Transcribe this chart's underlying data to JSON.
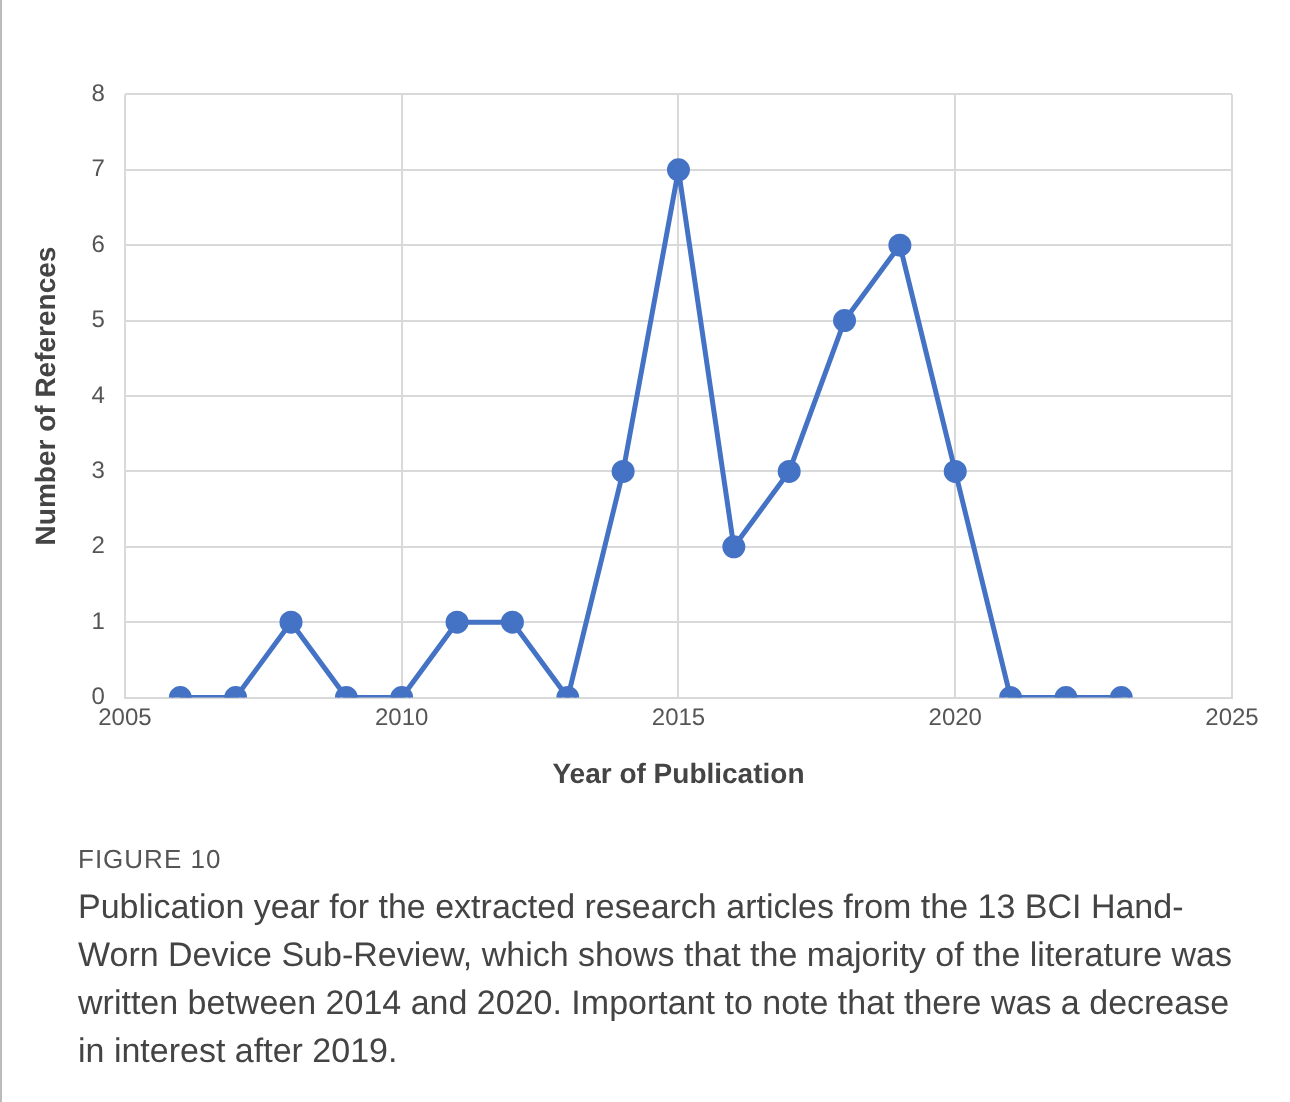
{
  "chart_data": {
    "type": "line",
    "xlabel": "Year of Publication",
    "ylabel": "Number of References",
    "x": [
      2006,
      2007,
      2008,
      2009,
      2010,
      2011,
      2012,
      2013,
      2014,
      2015,
      2016,
      2017,
      2018,
      2019,
      2020,
      2021,
      2022,
      2023
    ],
    "series": [
      {
        "color": "#4472c4",
        "values": [
          0,
          0,
          1,
          0,
          0,
          1,
          1,
          0,
          3,
          7,
          2,
          3,
          5,
          6,
          3,
          0,
          0,
          0
        ]
      }
    ],
    "xlim": [
      2005,
      2025
    ],
    "xticks": [
      2005,
      2010,
      2015,
      2020,
      2025
    ],
    "ylim": [
      0,
      8
    ],
    "yticks": [
      0,
      1,
      2,
      3,
      4,
      5,
      6,
      7,
      8
    ],
    "grid": true,
    "legend": false,
    "marker": "circle",
    "line_style": "solid",
    "annotations": [
      "FIGURE 10",
      "Publication year for the extracted research articles from the 13 BCI Hand-Worn Device Sub-Review, which shows that the majority of the literature was written between 2014 and 2020. Important to note that there was a decrease in interest after 2019."
    ]
  }
}
